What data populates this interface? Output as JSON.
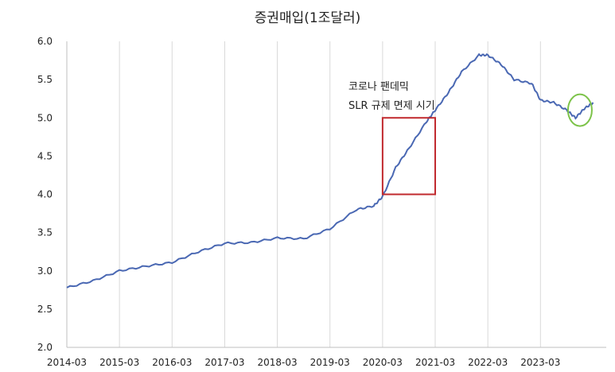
{
  "chart_data": {
    "type": "line",
    "title": "증권매입(1조달러)",
    "xlabel": "",
    "ylabel": "",
    "ylim": [
      2.0,
      6.0
    ],
    "yticks": [
      "2.0",
      "2.5",
      "3.0",
      "3.5",
      "4.0",
      "4.5",
      "5.0",
      "5.5",
      "6.0"
    ],
    "xlim": [
      "2014-03",
      "2024-06"
    ],
    "xticks": [
      "2014-03",
      "2015-03",
      "2016-03",
      "2017-03",
      "2018-03",
      "2019-03",
      "2020-03",
      "2021-03",
      "2022-03",
      "2023-03"
    ],
    "grid": {
      "vertical": true,
      "horizontal": false
    },
    "series": [
      {
        "color": "#4a68b3",
        "x": [
          "2014-03",
          "2014-09",
          "2015-03",
          "2015-09",
          "2016-03",
          "2016-09",
          "2017-03",
          "2017-09",
          "2018-03",
          "2018-09",
          "2019-03",
          "2019-09",
          "2020-01",
          "2020-03",
          "2020-06",
          "2020-09",
          "2021-01",
          "2021-03",
          "2021-06",
          "2021-09",
          "2022-01",
          "2022-03",
          "2022-06",
          "2022-09",
          "2023-01",
          "2023-03",
          "2023-06",
          "2023-09",
          "2023-11",
          "2024-01",
          "2024-03"
        ],
        "values": [
          2.78,
          2.87,
          3.0,
          3.06,
          3.11,
          3.25,
          3.36,
          3.37,
          3.43,
          3.42,
          3.55,
          3.8,
          3.85,
          3.97,
          4.35,
          4.6,
          4.95,
          5.1,
          5.33,
          5.6,
          5.82,
          5.82,
          5.7,
          5.5,
          5.45,
          5.23,
          5.2,
          5.1,
          5.0,
          5.12,
          5.2
        ]
      }
    ],
    "annotations": {
      "box": {
        "x": [
          "2020-03",
          "2021-03"
        ],
        "y": [
          4.0,
          5.0
        ],
        "color": "#c0282d"
      },
      "ellipse": {
        "x": "2023-12",
        "y": 5.1,
        "color": "#7dc34a"
      },
      "text_lines": [
        "코로나 팬데믹",
        "SLR 규제 면제 시기"
      ]
    }
  }
}
